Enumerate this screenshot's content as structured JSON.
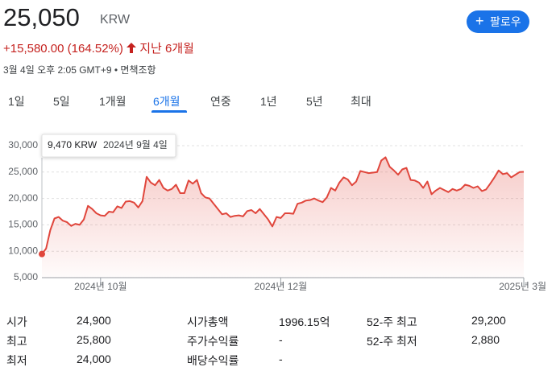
{
  "header": {
    "price": "25,050",
    "currency": "KRW",
    "change": "+15,580.00 (164.52%)",
    "period": "지난 6개월",
    "timestamp": "3월 4일 오후 2:05 GMT+9 • 면책조항",
    "follow": "팔로우"
  },
  "tabs": {
    "items": [
      "1일",
      "5일",
      "1개월",
      "6개월",
      "연중",
      "1년",
      "5년",
      "최대"
    ],
    "selected": 3
  },
  "tooltip": {
    "price": "9,470 KRW",
    "date": "2024년 9월 4일"
  },
  "chart_data": {
    "type": "line",
    "color": "#e0463c",
    "grid": true,
    "xlim": [
      0,
      115
    ],
    "xticks": [
      {
        "value": 14,
        "label": "2024년 10월"
      },
      {
        "value": 57,
        "label": "2024년 12월"
      },
      {
        "value": 115,
        "label": "2025년 3월"
      }
    ],
    "ylim": [
      5000,
      30000
    ],
    "yticks": [
      {
        "value": 5000,
        "label": "5,000"
      },
      {
        "value": 10000,
        "label": "10,000"
      },
      {
        "value": 15000,
        "label": "15,000"
      },
      {
        "value": 20000,
        "label": "20,000"
      },
      {
        "value": 25000,
        "label": "25,000"
      },
      {
        "value": 30000,
        "label": "30,000"
      }
    ],
    "values": [
      9470,
      10500,
      14000,
      16200,
      16500,
      15800,
      15500,
      14800,
      15200,
      15000,
      16000,
      18600,
      18000,
      17200,
      16800,
      16700,
      17500,
      17400,
      18500,
      18200,
      19400,
      19500,
      19200,
      18300,
      19500,
      24100,
      23000,
      22500,
      23500,
      22000,
      21500,
      21800,
      22600,
      21000,
      21000,
      23400,
      22800,
      23500,
      21000,
      20200,
      20000,
      19000,
      18000,
      17000,
      17200,
      16500,
      16700,
      16800,
      16600,
      17600,
      17800,
      17200,
      18000,
      17000,
      16000,
      14700,
      16500,
      16300,
      17200,
      17200,
      17100,
      19000,
      19200,
      19600,
      19700,
      20000,
      19600,
      19300,
      20200,
      22000,
      21500,
      23000,
      24000,
      23600,
      22500,
      23200,
      25200,
      25000,
      24800,
      24900,
      25000,
      27200,
      27800,
      26000,
      25300,
      24500,
      25500,
      25800,
      23500,
      23400,
      23000,
      22000,
      23200,
      20800,
      21500,
      22000,
      21600,
      21200,
      21800,
      21500,
      21800,
      22600,
      22400,
      22000,
      22300,
      21400,
      21700,
      22800,
      24000,
      25300,
      24600,
      24800,
      24000,
      24500,
      25000,
      25050
    ]
  },
  "stats": [
    [
      "시가",
      "24,900",
      "시가총액",
      "1996.15억",
      "52-주 최고",
      "29,200"
    ],
    [
      "최고",
      "25,800",
      "주가수익률",
      "-",
      "52-주 최저",
      "2,880"
    ],
    [
      "최저",
      "24,000",
      "배당수익률",
      "-"
    ]
  ]
}
